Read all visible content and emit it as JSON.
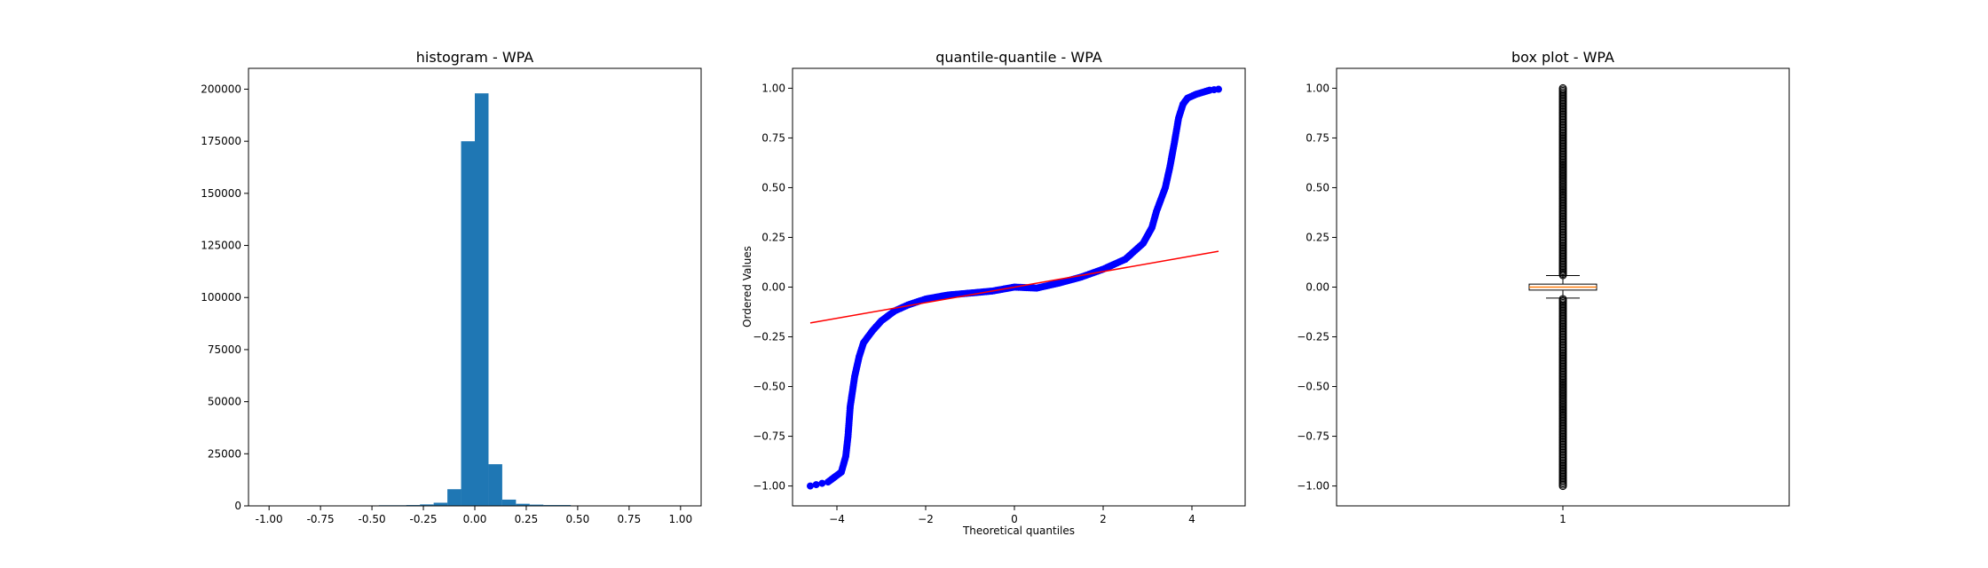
{
  "chart_data": [
    {
      "type": "bar",
      "title": "histogram - WPA",
      "xlabel": "",
      "ylabel": "",
      "xlim": [
        -1.1,
        1.1
      ],
      "ylim": [
        0,
        210000
      ],
      "xticks": [
        "-1.00",
        "-0.75",
        "-0.50",
        "-0.25",
        "0.00",
        "0.25",
        "0.50",
        "0.75",
        "1.00"
      ],
      "yticks": [
        "0",
        "25000",
        "50000",
        "75000",
        "100000",
        "125000",
        "150000",
        "175000",
        "200000"
      ],
      "bin_edges": [
        -0.4667,
        -0.3333,
        -0.2667,
        -0.2,
        -0.1333,
        -0.0667,
        0.0,
        0.0667,
        0.1333,
        0.2,
        0.2667,
        0.3333,
        0.4667,
        0.5333
      ],
      "values": [
        300,
        400,
        700,
        1500,
        8000,
        175000,
        198000,
        20000,
        3000,
        1000,
        600,
        400,
        200
      ],
      "color": "#1f77b4",
      "grid": false
    },
    {
      "type": "scatter",
      "title": "quantile-quantile - WPA",
      "xlabel": "Theoretical quantiles",
      "ylabel": "Ordered Values",
      "xlim": [
        -5.0,
        5.2
      ],
      "ylim": [
        -1.1,
        1.1
      ],
      "xticks": [
        "−4",
        "−2",
        "0",
        "2",
        "4"
      ],
      "yticks": [
        "−1.00",
        "−0.75",
        "−0.50",
        "−0.25",
        "0.00",
        "0.25",
        "0.50",
        "0.75",
        "1.00"
      ],
      "points": {
        "x": [
          -4.6,
          -4.2,
          -3.9,
          -3.8,
          -3.75,
          -3.7,
          -3.6,
          -3.5,
          -3.4,
          -3.2,
          -3.0,
          -2.7,
          -2.4,
          -2.0,
          -1.5,
          -1.0,
          -0.5,
          0.0,
          0.5,
          1.0,
          1.5,
          2.0,
          2.5,
          2.9,
          3.1,
          3.2,
          3.4,
          3.5,
          3.6,
          3.7,
          3.8,
          3.9,
          4.1,
          4.4,
          4.6
        ],
        "y": [
          -1.0,
          -0.98,
          -0.93,
          -0.85,
          -0.75,
          -0.6,
          -0.45,
          -0.35,
          -0.28,
          -0.22,
          -0.17,
          -0.12,
          -0.09,
          -0.06,
          -0.04,
          -0.03,
          -0.02,
          0.0,
          -0.005,
          0.02,
          0.05,
          0.09,
          0.14,
          0.22,
          0.3,
          0.38,
          0.5,
          0.6,
          0.72,
          0.85,
          0.92,
          0.95,
          0.97,
          0.99,
          0.995
        ]
      },
      "fit_line": {
        "x": [
          -4.6,
          4.6
        ],
        "y": [
          -0.18,
          0.18
        ]
      },
      "point_color": "#0000ff",
      "line_color": "#ff0000",
      "grid": false
    },
    {
      "type": "box",
      "title": "box plot - WPA",
      "xlabel": "",
      "ylabel": "",
      "xlim": [
        0.5,
        1.5
      ],
      "ylim": [
        -1.1,
        1.1
      ],
      "xticks": [
        "1"
      ],
      "yticks": [
        "−1.00",
        "−0.75",
        "−0.50",
        "−0.25",
        "0.00",
        "0.25",
        "0.50",
        "0.75",
        "1.00"
      ],
      "box": {
        "position": 1,
        "q1": -0.015,
        "median": 0.0,
        "q3": 0.015,
        "whisker_low": -0.055,
        "whisker_high": 0.058,
        "fliers_low": [
          -1.0,
          -0.06
        ],
        "fliers_high": [
          0.06,
          1.0
        ]
      },
      "box_color": "#000000",
      "median_color": "#ff7f0e",
      "grid": false
    }
  ]
}
